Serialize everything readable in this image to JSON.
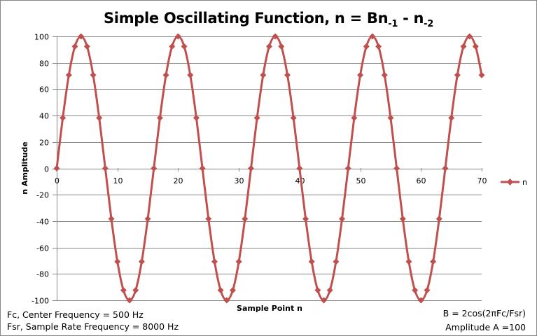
{
  "chart_data": {
    "type": "line",
    "title": "Simple Oscillating Function, n = Bn-1 - n-2",
    "title_parts": {
      "main": "Simple Oscillating Function, n = Bn",
      "sub1": "-1",
      "mid": " - n",
      "sub2": "-2"
    },
    "xlabel": "Sample Point n",
    "ylabel": "n Amplitude",
    "xlim": [
      0,
      70
    ],
    "ylim": [
      -100,
      100
    ],
    "x_ticks": [
      0,
      10,
      20,
      30,
      40,
      50,
      60,
      70
    ],
    "y_ticks": [
      100,
      80,
      60,
      40,
      20,
      0,
      -20,
      -40,
      -60,
      -80,
      -100
    ],
    "grid": true,
    "legend_position": "right",
    "series": [
      {
        "name": "n",
        "color": "#C0504D",
        "marker": "diamond",
        "smooth": true,
        "x": [
          0,
          1,
          2,
          3,
          4,
          5,
          6,
          7,
          8,
          9,
          10,
          11,
          12,
          13,
          14,
          15,
          16,
          17,
          18,
          19,
          20,
          21,
          22,
          23,
          24,
          25,
          26,
          27,
          28,
          29,
          30,
          31,
          32,
          33,
          34,
          35,
          36,
          37,
          38,
          39,
          40,
          41,
          42,
          43,
          44,
          45,
          46,
          47,
          48,
          49,
          50,
          51,
          52,
          53,
          54,
          55,
          56,
          57,
          58,
          59,
          60,
          61,
          62,
          63,
          64,
          65,
          66,
          67,
          68,
          69,
          70
        ],
        "values": [
          0,
          38.27,
          70.71,
          92.39,
          100,
          92.39,
          70.71,
          38.27,
          0,
          -38.27,
          -70.71,
          -92.39,
          -100,
          -92.39,
          -70.71,
          -38.27,
          0,
          38.27,
          70.71,
          92.39,
          100,
          92.39,
          70.71,
          38.27,
          0,
          -38.27,
          -70.71,
          -92.39,
          -100,
          -92.39,
          -70.71,
          -38.27,
          0,
          38.27,
          70.71,
          92.39,
          100,
          92.39,
          70.71,
          38.27,
          0,
          -38.27,
          -70.71,
          -92.39,
          -100,
          -92.39,
          -70.71,
          -38.27,
          0,
          38.27,
          70.71,
          92.39,
          100,
          92.39,
          70.71,
          38.27,
          0,
          -38.27,
          -70.71,
          -92.39,
          -100,
          -92.39,
          -70.71,
          -38.27,
          0,
          38.27,
          70.71,
          92.39,
          100,
          92.39,
          70.71
        ]
      }
    ],
    "annotations": {
      "fc": "Fc, Center Frequency = 500 Hz",
      "fsr": "Fsr, Sample Rate Frequency = 8000  Hz",
      "b_formula": "B = 2cos(2πFc/Fsr)",
      "amplitude": "Amplitude A =100"
    }
  },
  "legend": {
    "label": "n"
  },
  "colors": {
    "series": "#C0504D",
    "grid": "#868686",
    "axis": "#868686",
    "text": "#000000"
  }
}
